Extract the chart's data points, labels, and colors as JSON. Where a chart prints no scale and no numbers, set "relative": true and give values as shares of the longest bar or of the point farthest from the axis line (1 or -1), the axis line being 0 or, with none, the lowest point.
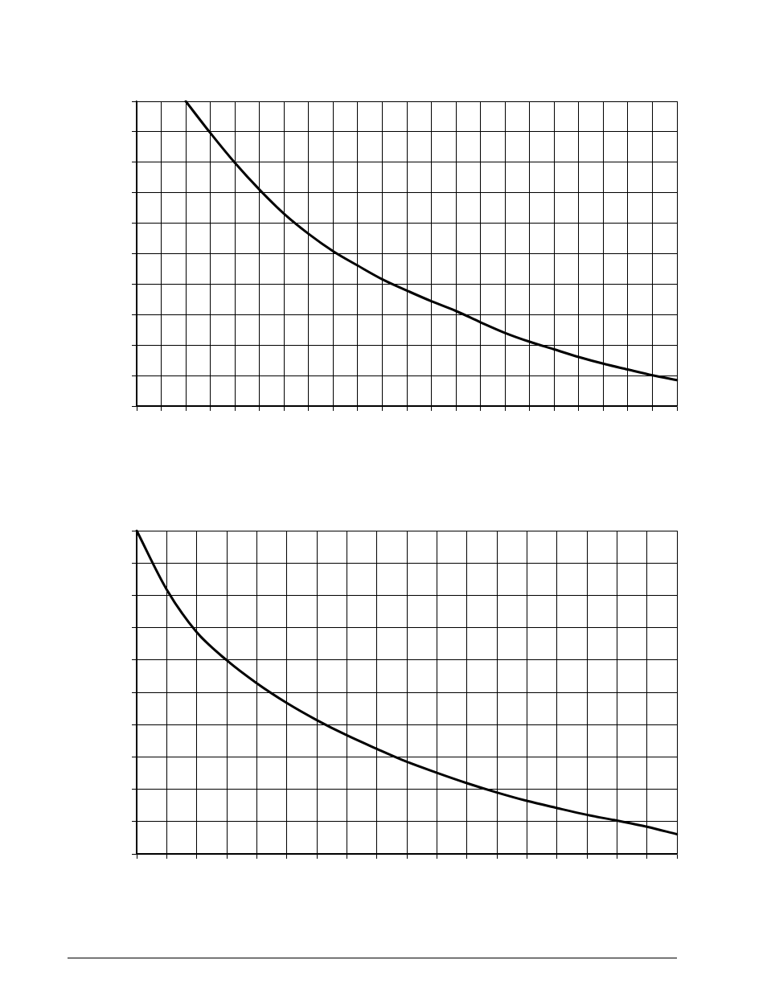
{
  "chart_data": [
    {
      "type": "line",
      "relative": true,
      "grid": true,
      "tick_labels": false,
      "marker": "none",
      "line_style": "solid",
      "categories": [
        null,
        null,
        null,
        null,
        null,
        null,
        null,
        null,
        null,
        null,
        null,
        null,
        null,
        null,
        null,
        null,
        null,
        null,
        null,
        null,
        null,
        null,
        null
      ],
      "series": [
        {
          "color": "#000000",
          "values": [
            null,
            null,
            1,
            0.896,
            0.798,
            0.71,
            0.631,
            0.565,
            0.508,
            0.461,
            0.416,
            0.379,
            0.344,
            0.312,
            0.275,
            0.24,
            0.211,
            0.186,
            0.161,
            0.139,
            0.12,
            0.101,
            0.085
          ]
        }
      ]
    },
    {
      "type": "line",
      "relative": true,
      "grid": true,
      "tick_labels": false,
      "marker": "none",
      "line_style": "solid",
      "categories": [
        null,
        null,
        null,
        null,
        null,
        null,
        null,
        null,
        null,
        null,
        null,
        null,
        null,
        null,
        null,
        null,
        null,
        null,
        null
      ],
      "series": [
        {
          "color": "#000000",
          "values": [
            1,
            0.818,
            0.686,
            0.599,
            0.528,
            0.467,
            0.414,
            0.367,
            0.325,
            0.285,
            0.251,
            0.219,
            0.19,
            0.164,
            0.142,
            0.121,
            0.103,
            0.084,
            0.061
          ]
        }
      ]
    }
  ]
}
